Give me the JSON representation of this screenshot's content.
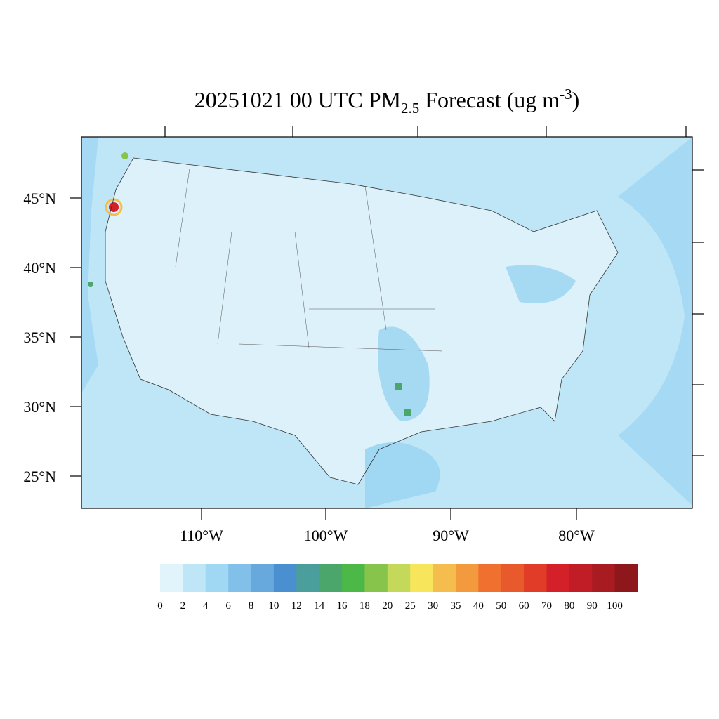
{
  "title": {
    "parts": [
      "20251021 00 UTC PM",
      "2.5",
      " Forecast (ug m",
      "-3",
      ")"
    ]
  },
  "lat_labels": [
    "45°N",
    "40°N",
    "35°N",
    "30°N",
    "25°N"
  ],
  "lon_labels": [
    "110°W",
    "100°W",
    "90°W",
    "80°W"
  ],
  "colorbar": {
    "levels": [
      0,
      2,
      4,
      6,
      8,
      10,
      12,
      14,
      16,
      18,
      20,
      25,
      30,
      35,
      40,
      50,
      60,
      70,
      80,
      90,
      100
    ],
    "colors": [
      "#e1f3fb",
      "#bfe6f7",
      "#a0d8f4",
      "#83c0e9",
      "#67a9dc",
      "#4a8fd0",
      "#4a9e9c",
      "#4aa66a",
      "#4cb848",
      "#86c44c",
      "#c4d95a",
      "#f7e55c",
      "#f5bd4d",
      "#f39a3e",
      "#f07030",
      "#e85a2c",
      "#e03c28",
      "#d42129",
      "#c01d26",
      "#a81b21",
      "#8e171b"
    ]
  }
}
